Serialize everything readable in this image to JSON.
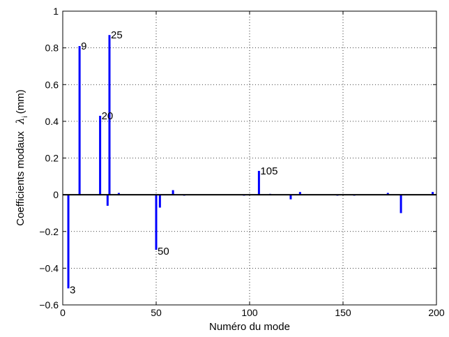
{
  "chart_data": {
    "type": "bar",
    "style": "stem",
    "xlabel": "Numéro du mode",
    "ylabel": {
      "text": "Coefficients modaux",
      "symbol": "λ",
      "subscript": "i",
      "unit": "(mm)"
    },
    "xlim": [
      0,
      200
    ],
    "ylim": [
      -0.6,
      1
    ],
    "xticks": [
      0,
      50,
      100,
      150,
      200
    ],
    "xtick_labels": [
      "0",
      "50",
      "100",
      "150",
      "200"
    ],
    "yticks": [
      -0.6,
      -0.4,
      -0.2,
      0,
      0.2,
      0.4,
      0.6,
      0.8,
      1
    ],
    "ytick_labels": [
      "−0.6",
      "−0.4",
      "−0.2",
      "0",
      "0.2",
      "0.4",
      "0.6",
      "0.8",
      "1"
    ],
    "grid": true,
    "bar_color": "#0000ff",
    "x": [
      3,
      9,
      20,
      24,
      25,
      30,
      50,
      52,
      59,
      65,
      97,
      105,
      111,
      122,
      127,
      147,
      156,
      174,
      181,
      198
    ],
    "values": [
      -0.51,
      0.81,
      0.43,
      -0.06,
      0.87,
      0.01,
      -0.3,
      -0.07,
      0.025,
      -0.005,
      -0.005,
      0.13,
      0.005,
      -0.025,
      0.015,
      -0.005,
      -0.005,
      0.01,
      -0.1,
      0.015
    ],
    "annotations": [
      {
        "x": 3,
        "y": -0.51,
        "text": "3"
      },
      {
        "x": 9,
        "y": 0.81,
        "text": "9"
      },
      {
        "x": 20,
        "y": 0.43,
        "text": "20"
      },
      {
        "x": 25,
        "y": 0.87,
        "text": "25"
      },
      {
        "x": 50,
        "y": -0.3,
        "text": "50"
      },
      {
        "x": 105,
        "y": 0.13,
        "text": "105"
      }
    ]
  }
}
